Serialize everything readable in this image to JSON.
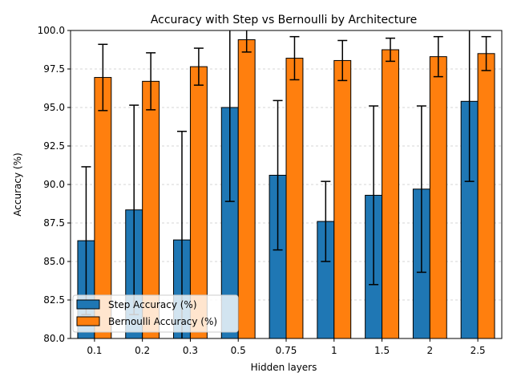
{
  "chart_data": {
    "type": "bar",
    "title": "Accuracy with Step vs Bernoulli by Architecture",
    "xlabel": "Hidden layers",
    "ylabel": "Accuracy (%)",
    "categories": [
      "0.1",
      "0.2",
      "0.3",
      "0.5",
      "0.75",
      "1",
      "1.5",
      "2",
      "2.5"
    ],
    "ylim": [
      80.0,
      100.0
    ],
    "yticks": [
      "80.0",
      "82.5",
      "85.0",
      "87.5",
      "90.0",
      "92.5",
      "95.0",
      "97.5",
      "100.0"
    ],
    "grid": "y-dashed",
    "legend_position": "lower-left",
    "series": [
      {
        "name": "Step Accuracy (%)",
        "color": "#1f77b4",
        "values": [
          86.35,
          88.35,
          86.4,
          95.0,
          90.6,
          87.6,
          89.3,
          89.7,
          95.4
        ],
        "errors": [
          4.8,
          6.8,
          7.05,
          6.1,
          4.85,
          2.6,
          5.8,
          5.4,
          5.2
        ]
      },
      {
        "name": "Bernoulli Accuracy (%)",
        "color": "#ff7f0e",
        "values": [
          96.95,
          96.7,
          97.65,
          99.4,
          98.2,
          98.05,
          98.75,
          98.3,
          98.5
        ],
        "errors": [
          2.15,
          1.85,
          1.2,
          0.8,
          1.4,
          1.3,
          0.75,
          1.3,
          1.1
        ]
      }
    ]
  }
}
